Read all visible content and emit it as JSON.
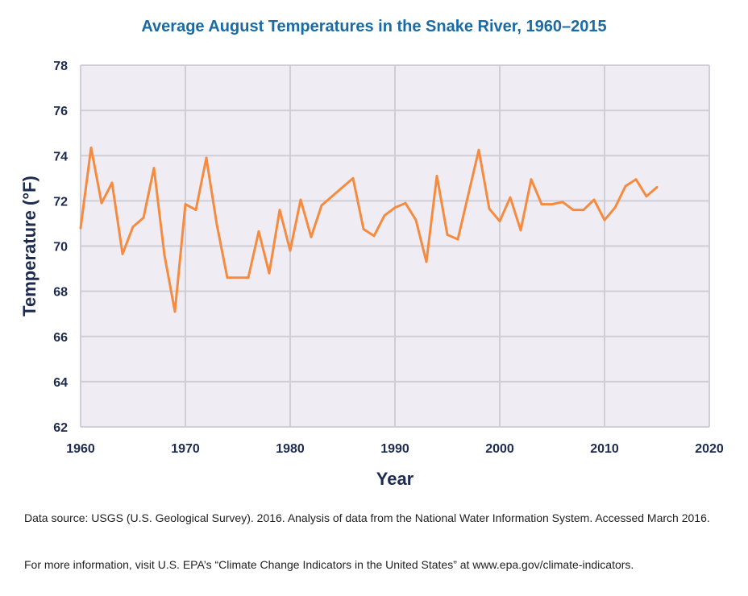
{
  "chart_data": {
    "type": "line",
    "title": "Average August Temperatures in the Snake River, 1960–2015",
    "xlabel": "Year",
    "ylabel": "Temperature (°F)",
    "xlim": [
      1960,
      2020
    ],
    "ylim": [
      62,
      78
    ],
    "xticks": [
      1960,
      1970,
      1980,
      1990,
      2000,
      2010,
      2020
    ],
    "yticks": [
      62,
      64,
      66,
      68,
      70,
      72,
      74,
      76,
      78
    ],
    "grid": true,
    "colors": {
      "line": "#f68b3f",
      "plot_bg": "#efedf3",
      "grid": "#cfcdd6",
      "title": "#1a6aa6",
      "axis_text": "#1d2b4f"
    },
    "series": [
      {
        "x": [
          1960,
          1961,
          1962,
          1963,
          1964,
          1965,
          1966,
          1967,
          1968,
          1969,
          1970,
          1971,
          1972,
          1973,
          1974,
          1976,
          1977,
          1978,
          1979,
          1980,
          1981,
          1982,
          1983,
          1986,
          1987,
          1988,
          1989,
          1990,
          1991,
          1992,
          1993,
          1994,
          1995,
          1996,
          1998,
          1999,
          2000,
          2001,
          2002,
          2003,
          2004,
          2005,
          2006,
          2007,
          2008,
          2009,
          2010,
          2011,
          2012,
          2013,
          2014,
          2015
        ],
        "y": [
          70.8,
          74.35,
          71.9,
          72.8,
          69.65,
          70.85,
          71.25,
          73.45,
          69.6,
          67.1,
          71.85,
          71.6,
          73.9,
          70.95,
          68.6,
          68.6,
          70.65,
          68.8,
          71.6,
          69.8,
          72.05,
          70.4,
          71.8,
          73.0,
          70.75,
          70.45,
          71.35,
          71.7,
          71.9,
          71.15,
          69.3,
          73.1,
          70.5,
          70.3,
          74.25,
          71.65,
          71.1,
          72.15,
          70.7,
          72.95,
          71.85,
          71.85,
          71.95,
          71.6,
          71.6,
          72.05,
          71.15,
          71.7,
          72.65,
          72.95,
          72.2,
          72.6
        ]
      }
    ]
  },
  "notes": {
    "source": "Data source: USGS (U.S. Geological Survey). 2016. Analysis of data from the National Water Information System. Accessed March 2016.",
    "info": "For more information, visit U.S. EPA’s “Climate Change Indicators in the United States” at www.epa.gov/climate-indicators."
  }
}
